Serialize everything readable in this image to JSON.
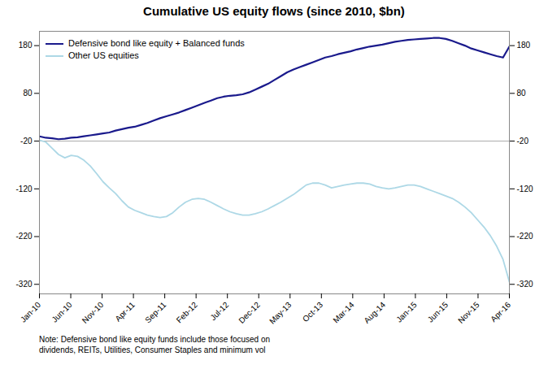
{
  "chart_data": {
    "type": "line",
    "title": "Cumulative US equity flows (since 2010, $bn)",
    "x": [
      0,
      1,
      2,
      3,
      4,
      5,
      6,
      7,
      8,
      9,
      10,
      11,
      12,
      13,
      14,
      15,
      16,
      17,
      18,
      19,
      20,
      21,
      22,
      23,
      24,
      25,
      26,
      27,
      28,
      29,
      30,
      31,
      32,
      33,
      34,
      35,
      36,
      37,
      38,
      39,
      40,
      41,
      42,
      43,
      44,
      45,
      46,
      47,
      48,
      49,
      50,
      51,
      52,
      53,
      54,
      55,
      56,
      57,
      58,
      59,
      60,
      61,
      62,
      63,
      64,
      65,
      66,
      67,
      68,
      69,
      70,
      71,
      72,
      73,
      74
    ],
    "series": [
      {
        "name": "Defensive bond like equity + Balanced funds",
        "color": "#1a1a8c",
        "values": [
          -10,
          -13,
          -14,
          -16,
          -15,
          -13,
          -12,
          -10,
          -8,
          -6,
          -4,
          -2,
          2,
          5,
          8,
          10,
          14,
          18,
          23,
          28,
          32,
          36,
          40,
          45,
          50,
          55,
          60,
          65,
          70,
          73,
          75,
          76,
          78,
          82,
          88,
          94,
          100,
          108,
          116,
          124,
          130,
          135,
          140,
          145,
          150,
          155,
          158,
          162,
          165,
          168,
          172,
          175,
          178,
          180,
          182,
          185,
          188,
          190,
          192,
          193,
          194,
          195,
          196,
          196,
          194,
          190,
          185,
          180,
          174,
          170,
          166,
          162,
          158,
          155,
          178
        ]
      },
      {
        "name": "Other US equities",
        "color": "#add8e6",
        "values": [
          -18,
          -22,
          -35,
          -48,
          -55,
          -50,
          -52,
          -60,
          -72,
          -88,
          -105,
          -118,
          -130,
          -145,
          -158,
          -165,
          -170,
          -175,
          -178,
          -180,
          -178,
          -170,
          -158,
          -148,
          -142,
          -140,
          -142,
          -148,
          -155,
          -162,
          -168,
          -172,
          -175,
          -175,
          -172,
          -168,
          -162,
          -155,
          -148,
          -140,
          -132,
          -122,
          -112,
          -108,
          -108,
          -112,
          -118,
          -115,
          -112,
          -110,
          -108,
          -108,
          -110,
          -115,
          -118,
          -120,
          -118,
          -115,
          -112,
          -112,
          -115,
          -120,
          -125,
          -130,
          -135,
          -140,
          -148,
          -158,
          -170,
          -185,
          -200,
          -218,
          -240,
          -268,
          -315
        ]
      }
    ],
    "xlim": [
      0,
      74
    ],
    "xticks": [
      {
        "value": 0,
        "label": "Jan-10"
      },
      {
        "value": 4.933333333333334,
        "label": "Jun-10"
      },
      {
        "value": 9.866666666666667,
        "label": "Nov-10"
      },
      {
        "value": 14.8,
        "label": "Apr-11"
      },
      {
        "value": 19.733333333333334,
        "label": "Sep-11"
      },
      {
        "value": 24.666666666666668,
        "label": "Feb-12"
      },
      {
        "value": 29.6,
        "label": "Jul-12"
      },
      {
        "value": 34.53333333333333,
        "label": "Dec-12"
      },
      {
        "value": 39.46666666666667,
        "label": "May-13"
      },
      {
        "value": 44.4,
        "label": "Oct-13"
      },
      {
        "value": 49.333333333333336,
        "label": "Mar-14"
      },
      {
        "value": 54.266666666666666,
        "label": "Aug-14"
      },
      {
        "value": 59.2,
        "label": "Jan-15"
      },
      {
        "value": 64.13333333333334,
        "label": "Jun-15"
      },
      {
        "value": 69.06666666666666,
        "label": "Nov-15"
      },
      {
        "value": 74,
        "label": "Apr-16"
      }
    ],
    "ylim": [
      -340,
      210
    ],
    "yticks": [
      -320,
      -220,
      -120,
      -20,
      80,
      180
    ],
    "y2lim": [
      -340,
      210
    ],
    "y2ticks": [
      -320,
      -220,
      -120,
      -20,
      80,
      180
    ],
    "hline": -20,
    "legend": "upper left",
    "note": "Note: Defensive bond like equity funds include those focused on\ndividends, REITs, Utilities, Consumer Staples and minimum vol"
  }
}
